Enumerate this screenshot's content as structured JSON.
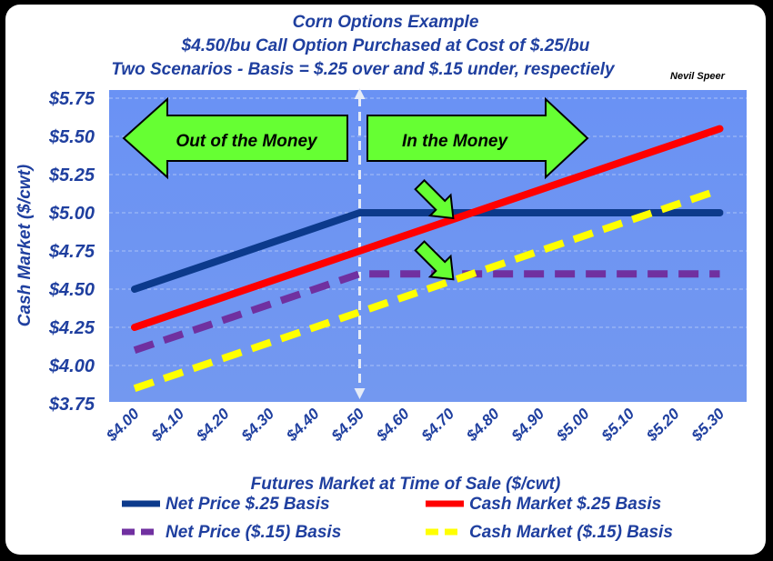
{
  "chart_data": {
    "type": "line",
    "title_lines": [
      "Corn Options Example",
      "$4.50/bu Call Option Purchased at Cost of $.25/bu",
      "Two Scenarios - Basis = $.25 over and $.15 under, respectiely"
    ],
    "author": "Nevil Speer",
    "xlabel": "Futures Market at Time of Sale ($/cwt)",
    "ylabel": "Cash Market ($/cwt)",
    "x": [
      4.0,
      4.1,
      4.2,
      4.3,
      4.4,
      4.5,
      4.6,
      4.7,
      4.8,
      4.9,
      5.0,
      5.1,
      5.2,
      5.3
    ],
    "x_tick_labels": [
      "$4.00",
      "$4.10",
      "$4.20",
      "$4.30",
      "$4.40",
      "$4.50",
      "$4.60",
      "$4.70",
      "$4.80",
      "$4.90",
      "$5.00",
      "$5.10",
      "$5.20",
      "$5.30"
    ],
    "ylim": [
      3.75,
      5.75
    ],
    "y_ticks": [
      3.75,
      4.0,
      4.25,
      4.5,
      4.75,
      5.0,
      5.25,
      5.5,
      5.75
    ],
    "y_tick_labels": [
      "$3.75",
      "$4.00",
      "$4.25",
      "$4.50",
      "$4.75",
      "$5.00",
      "$5.25",
      "$5.50",
      "$5.75"
    ],
    "grid": "horizontal dashed",
    "series": [
      {
        "name": "Net Price $.25 Basis",
        "color": "#0c3a8c",
        "style": "solid",
        "values": [
          4.5,
          4.6,
          4.7,
          4.8,
          4.9,
          5.0,
          5.0,
          5.0,
          5.0,
          5.0,
          5.0,
          5.0,
          5.0,
          5.0
        ]
      },
      {
        "name": "Cash Market $.25 Basis",
        "color": "#ff0000",
        "style": "solid",
        "values": [
          4.25,
          4.35,
          4.45,
          4.55,
          4.65,
          4.75,
          4.85,
          4.95,
          5.05,
          5.15,
          5.25,
          5.35,
          5.45,
          5.55
        ]
      },
      {
        "name": "Net Price ($.15) Basis",
        "color": "#7030a0",
        "style": "dashed",
        "values": [
          4.1,
          4.2,
          4.3,
          4.4,
          4.5,
          4.6,
          4.6,
          4.6,
          4.6,
          4.6,
          4.6,
          4.6,
          4.6,
          4.6
        ]
      },
      {
        "name": "Cash Market ($.15) Basis",
        "color": "#ffff00",
        "style": "dashed",
        "values": [
          3.85,
          3.95,
          4.05,
          4.15,
          4.25,
          4.35,
          4.45,
          4.55,
          4.65,
          4.75,
          4.85,
          4.95,
          5.05,
          5.15
        ]
      }
    ],
    "strike_marker": {
      "x": 4.5
    },
    "annotations": [
      {
        "text": "Out of the Money",
        "direction": "left"
      },
      {
        "text": "In the Money",
        "direction": "right"
      }
    ],
    "crossover_arrows": [
      {
        "x": 4.72,
        "y": 5.0
      },
      {
        "x": 4.72,
        "y": 4.6
      }
    ],
    "legend_position": "bottom",
    "colors": {
      "plot_bg": "#6f95f2",
      "text": "#1f3f9f",
      "arrow_fill": "#66ff33"
    }
  }
}
